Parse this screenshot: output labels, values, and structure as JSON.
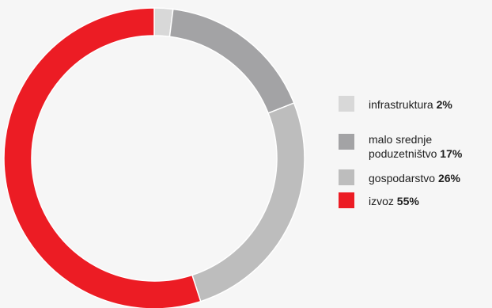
{
  "chart_data": {
    "type": "pie",
    "variant": "donut",
    "legend_position": "right",
    "categories": [
      "infrastruktura",
      "malo srednje poduzetništvo",
      "gospodarstvo",
      "izvoz"
    ],
    "values": [
      2,
      17,
      26,
      55
    ],
    "value_labels": [
      "2%",
      "17%",
      "26%",
      "55%"
    ],
    "colors": [
      "#d8d8d8",
      "#a3a3a5",
      "#bdbdbd",
      "#ec1c24"
    ],
    "legend": [
      {
        "label_lines": [
          "infrastruktura"
        ],
        "value_label": "2%"
      },
      {
        "label_lines": [
          "malo srednje",
          "poduzetništvo"
        ],
        "value_label": "17%"
      },
      {
        "label_lines": [
          "gospodarstvo"
        ],
        "value_label": "26%"
      },
      {
        "label_lines": [
          "izvoz"
        ],
        "value_label": "55%"
      }
    ]
  }
}
